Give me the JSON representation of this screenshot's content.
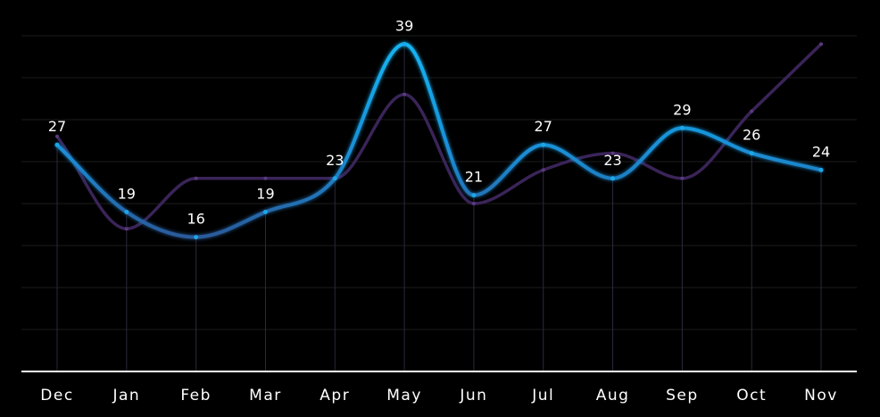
{
  "chart_data": {
    "type": "line",
    "categories": [
      "Dec",
      "Jan",
      "Feb",
      "Mar",
      "Apr",
      "May",
      "Jun",
      "Jul",
      "Aug",
      "Sep",
      "Oct",
      "Nov"
    ],
    "series": [
      {
        "values": [
          27,
          19,
          16,
          19,
          23,
          39,
          21,
          27,
          23,
          29,
          26,
          24
        ],
        "color": "#1aa7e8",
        "gradient_end": "#2a5a9a",
        "data_labels": true
      },
      {
        "values": [
          28,
          17,
          23,
          23,
          23,
          33,
          20,
          24,
          26,
          23,
          31,
          39
        ],
        "color": "#3a2458",
        "data_labels": false
      }
    ],
    "ylim": [
      0,
      40
    ],
    "grid": true,
    "smooth": true,
    "colors": {
      "background": "#000000",
      "grid": "#1c1c1c",
      "vertical_lines": "#2a2a3e",
      "axis": "#ffffff",
      "text": "#ffffff"
    }
  }
}
